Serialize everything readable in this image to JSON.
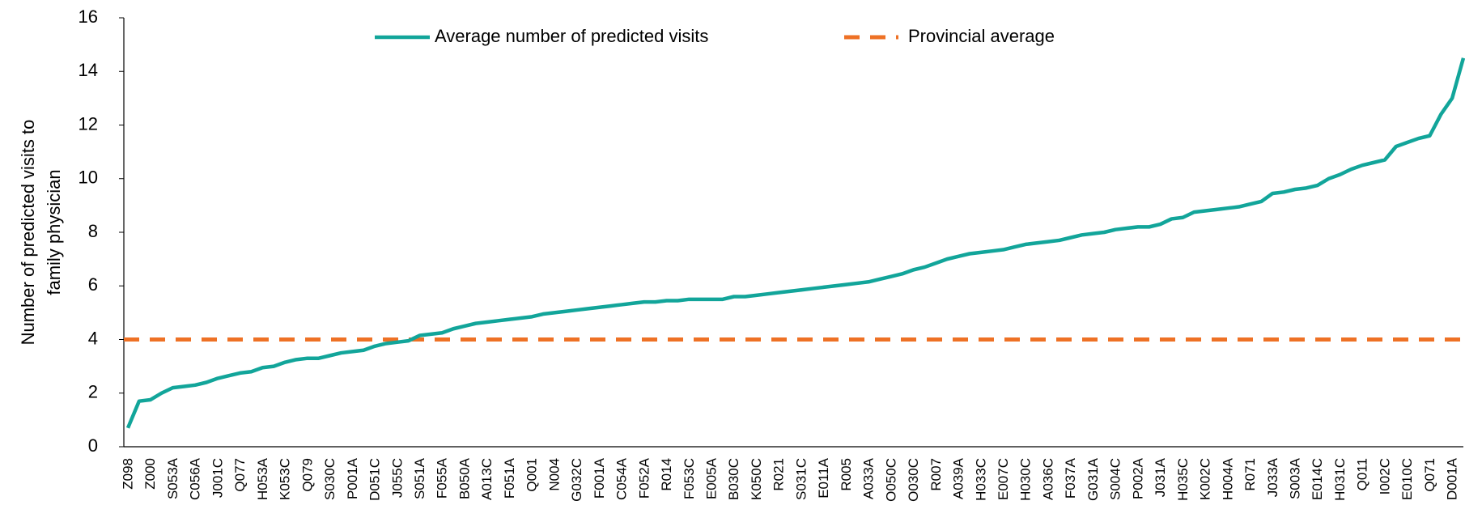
{
  "chart_data": {
    "type": "line",
    "y_label_lines": [
      "Number of predicted visits to",
      "family physician"
    ],
    "categories": [
      "Z098",
      null,
      "Z000",
      null,
      "S053A",
      null,
      "C056A",
      null,
      "J001C",
      null,
      "Q077",
      null,
      "H053A",
      null,
      "K053C",
      null,
      "Q079",
      null,
      "S030C",
      null,
      "P001A",
      null,
      "D051C",
      null,
      "J055C",
      null,
      "S051A",
      null,
      "F055A",
      null,
      "B050A",
      null,
      "A013C",
      null,
      "F051A",
      null,
      "Q001",
      null,
      "N004",
      null,
      "G032C",
      null,
      "F001A",
      null,
      "C054A",
      null,
      "F052A",
      null,
      "R014",
      null,
      "F053C",
      null,
      "E005A",
      null,
      "B030C",
      null,
      "K050C",
      null,
      "R021",
      null,
      "S031C",
      null,
      "E011A",
      null,
      "R005",
      null,
      "A033A",
      null,
      "O050C",
      null,
      "O030C",
      null,
      "R007",
      null,
      "A039A",
      null,
      "H033C",
      null,
      "E007C",
      null,
      "H030C",
      null,
      "A036C",
      null,
      "F037A",
      null,
      "G031A",
      null,
      "S004C",
      null,
      "P002A",
      null,
      "J031A",
      null,
      "H035C",
      null,
      "K002C",
      null,
      "H004A",
      null,
      "R071",
      null,
      "J033A",
      null,
      "S003A",
      null,
      "E014C",
      null,
      "H031C",
      null,
      "Q011",
      null,
      "I002C",
      null,
      "E010C",
      null,
      "Q071",
      null,
      "D001A",
      null
    ],
    "series": [
      {
        "name": "Average number of predicted visits",
        "color": "#12a59a",
        "values": [
          0.7,
          1.7,
          1.75,
          2.0,
          2.2,
          2.25,
          2.3,
          2.4,
          2.55,
          2.65,
          2.75,
          2.8,
          2.95,
          3.0,
          3.15,
          3.25,
          3.3,
          3.3,
          3.4,
          3.5,
          3.55,
          3.6,
          3.75,
          3.85,
          3.9,
          3.95,
          4.15,
          4.2,
          4.25,
          4.4,
          4.5,
          4.6,
          4.65,
          4.7,
          4.75,
          4.8,
          4.85,
          4.95,
          5.0,
          5.05,
          5.1,
          5.15,
          5.2,
          5.25,
          5.3,
          5.35,
          5.4,
          5.4,
          5.45,
          5.45,
          5.5,
          5.5,
          5.5,
          5.5,
          5.6,
          5.6,
          5.65,
          5.7,
          5.75,
          5.8,
          5.85,
          5.9,
          5.95,
          6.0,
          6.05,
          6.1,
          6.15,
          6.25,
          6.35,
          6.45,
          6.6,
          6.7,
          6.85,
          7.0,
          7.1,
          7.2,
          7.25,
          7.3,
          7.35,
          7.45,
          7.55,
          7.6,
          7.65,
          7.7,
          7.8,
          7.9,
          7.95,
          8.0,
          8.1,
          8.15,
          8.2,
          8.2,
          8.3,
          8.5,
          8.55,
          8.75,
          8.8,
          8.85,
          8.9,
          8.95,
          9.05,
          9.15,
          9.45,
          9.5,
          9.6,
          9.65,
          9.75,
          10.0,
          10.15,
          10.35,
          10.5,
          10.6,
          10.7,
          11.2,
          11.35,
          11.5,
          11.6,
          12.4,
          13.0,
          14.5
        ]
      }
    ],
    "reference_lines": [
      {
        "name": "Provincial average",
        "color": "#ee7125",
        "value": 4
      }
    ],
    "ylim": [
      0,
      16
    ],
    "yticks": [
      0,
      2,
      4,
      6,
      8,
      10,
      12,
      14,
      16
    ],
    "grid": false,
    "legend": "top"
  }
}
